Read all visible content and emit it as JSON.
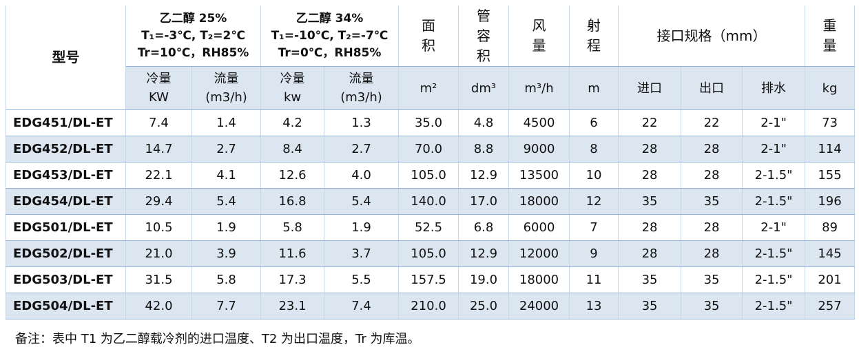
{
  "table": {
    "header": {
      "model": "型号",
      "groups": [
        {
          "lines": [
            "乙二醇 25%",
            "T₁=-3℃, T₂=2℃",
            "Tr=10℃，RH85%"
          ]
        },
        {
          "lines": [
            "乙二醇 34%",
            "T₁=-10℃, T₂=-7℃",
            "Tr=0℃，RH85%"
          ]
        }
      ],
      "area": "面积",
      "volume": "管容积",
      "airflow": "风量",
      "throw": "射程",
      "connection": "接口规格（mm）",
      "weight": "重量",
      "units": [
        [
          "冷量",
          "KW"
        ],
        [
          "流量",
          "(m3/h)"
        ],
        [
          "冷量",
          "kw"
        ],
        [
          "流量",
          "(m3/h)"
        ],
        [
          "m²"
        ],
        [
          "dm³"
        ],
        [
          "m³/h"
        ],
        [
          "m"
        ],
        [
          "进口"
        ],
        [
          "出口"
        ],
        [
          "排水"
        ],
        [
          "kg"
        ]
      ]
    },
    "rows": [
      [
        "EDG451/DL-ET",
        "7.4",
        "1.4",
        "4.2",
        "1.3",
        "35.0",
        "4.8",
        "4500",
        "6",
        "22",
        "22",
        "2-1\"",
        "73"
      ],
      [
        "EDG452/DL-ET",
        "14.7",
        "2.7",
        "8.4",
        "2.7",
        "70.0",
        "8.8",
        "9000",
        "8",
        "28",
        "28",
        "2-1\"",
        "114"
      ],
      [
        "EDG453/DL-ET",
        "22.1",
        "4.1",
        "12.6",
        "4.0",
        "105.0",
        "12.9",
        "13500",
        "10",
        "28",
        "28",
        "2-1.5\"",
        "155"
      ],
      [
        "EDG454/DL-ET",
        "29.4",
        "5.4",
        "16.8",
        "5.4",
        "140.0",
        "17.0",
        "18000",
        "12",
        "35",
        "35",
        "2-1.5\"",
        "196"
      ],
      [
        "EDG501/DL-ET",
        "10.5",
        "1.9",
        "5.8",
        "1.9",
        "52.5",
        "6.8",
        "6000",
        "7",
        "28",
        "28",
        "2-1\"",
        "89"
      ],
      [
        "EDG502/DL-ET",
        "21.0",
        "3.9",
        "11.6",
        "3.7",
        "105.0",
        "12.9",
        "12000",
        "9",
        "28",
        "28",
        "2-1.5\"",
        "145"
      ],
      [
        "EDG503/DL-ET",
        "31.5",
        "5.8",
        "17.3",
        "5.5",
        "157.5",
        "19.0",
        "18000",
        "11",
        "35",
        "35",
        "2-1.5\"",
        "201"
      ],
      [
        "EDG504/DL-ET",
        "42.0",
        "7.7",
        "23.1",
        "7.4",
        "210.0",
        "25.0",
        "24000",
        "13",
        "35",
        "35",
        "2-1.5\"",
        "257"
      ]
    ],
    "note": "备注：表中 T1 为乙二醇载冷剂的进口温度、T2 为出口温度，Tr 为库温。"
  }
}
